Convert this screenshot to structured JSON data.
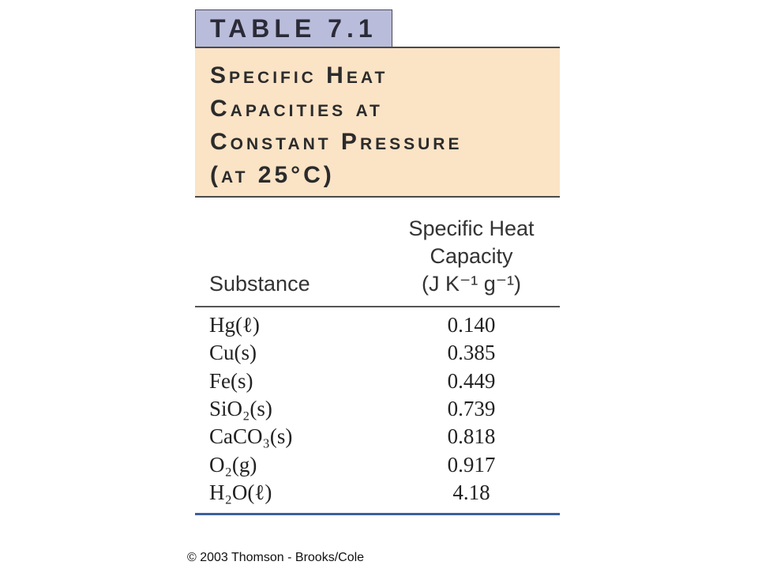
{
  "table_label": "TABLE 7.1",
  "title_lines": [
    "Specific Heat",
    "Capacities at",
    "Constant Pressure",
    "(at 25°C)"
  ],
  "table": {
    "header": {
      "substance": "Substance",
      "capacity_lines": [
        "Specific Heat",
        "Capacity",
        "(J K⁻¹ g⁻¹)"
      ]
    },
    "rows": [
      [
        "Hg(ℓ)",
        "0.140"
      ],
      [
        "Cu(s)",
        "0.385"
      ],
      [
        "Fe(s)",
        "0.449"
      ],
      [
        "SiO₂(s)",
        "0.739"
      ],
      [
        "CaCO₃(s)",
        "0.818"
      ],
      [
        "O₂(g)",
        "0.917"
      ],
      [
        "H₂O(ℓ)",
        "4.18"
      ]
    ]
  },
  "footer": "© 2003 Thomson - Brooks/Cole"
}
